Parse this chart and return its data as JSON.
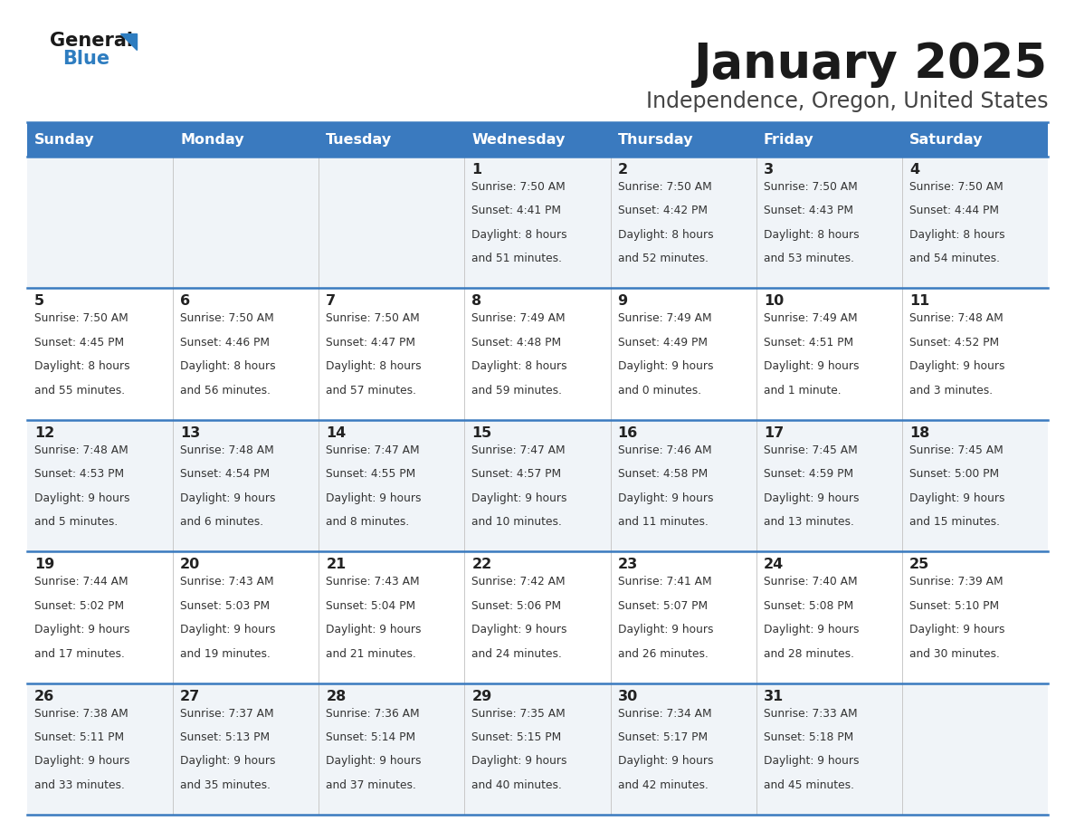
{
  "title": "January 2025",
  "subtitle": "Independence, Oregon, United States",
  "days_of_week": [
    "Sunday",
    "Monday",
    "Tuesday",
    "Wednesday",
    "Thursday",
    "Friday",
    "Saturday"
  ],
  "header_bg": "#3a7abf",
  "header_text": "#ffffff",
  "row_bg_odd": "#f0f4f8",
  "row_bg_even": "#ffffff",
  "cell_text": "#333333",
  "day_num_color": "#222222",
  "border_color": "#3a7abf",
  "logo_color_black": "#1a1a1a",
  "logo_color_blue": "#2e7dc0",
  "calendar_data": [
    [
      {
        "day": null,
        "sunrise": null,
        "sunset": null,
        "daylight": null
      },
      {
        "day": null,
        "sunrise": null,
        "sunset": null,
        "daylight": null
      },
      {
        "day": null,
        "sunrise": null,
        "sunset": null,
        "daylight": null
      },
      {
        "day": 1,
        "sunrise": "7:50 AM",
        "sunset": "4:41 PM",
        "daylight": "8 hours and 51 minutes."
      },
      {
        "day": 2,
        "sunrise": "7:50 AM",
        "sunset": "4:42 PM",
        "daylight": "8 hours and 52 minutes."
      },
      {
        "day": 3,
        "sunrise": "7:50 AM",
        "sunset": "4:43 PM",
        "daylight": "8 hours and 53 minutes."
      },
      {
        "day": 4,
        "sunrise": "7:50 AM",
        "sunset": "4:44 PM",
        "daylight": "8 hours and 54 minutes."
      }
    ],
    [
      {
        "day": 5,
        "sunrise": "7:50 AM",
        "sunset": "4:45 PM",
        "daylight": "8 hours and 55 minutes."
      },
      {
        "day": 6,
        "sunrise": "7:50 AM",
        "sunset": "4:46 PM",
        "daylight": "8 hours and 56 minutes."
      },
      {
        "day": 7,
        "sunrise": "7:50 AM",
        "sunset": "4:47 PM",
        "daylight": "8 hours and 57 minutes."
      },
      {
        "day": 8,
        "sunrise": "7:49 AM",
        "sunset": "4:48 PM",
        "daylight": "8 hours and 59 minutes."
      },
      {
        "day": 9,
        "sunrise": "7:49 AM",
        "sunset": "4:49 PM",
        "daylight": "9 hours and 0 minutes."
      },
      {
        "day": 10,
        "sunrise": "7:49 AM",
        "sunset": "4:51 PM",
        "daylight": "9 hours and 1 minute."
      },
      {
        "day": 11,
        "sunrise": "7:48 AM",
        "sunset": "4:52 PM",
        "daylight": "9 hours and 3 minutes."
      }
    ],
    [
      {
        "day": 12,
        "sunrise": "7:48 AM",
        "sunset": "4:53 PM",
        "daylight": "9 hours and 5 minutes."
      },
      {
        "day": 13,
        "sunrise": "7:48 AM",
        "sunset": "4:54 PM",
        "daylight": "9 hours and 6 minutes."
      },
      {
        "day": 14,
        "sunrise": "7:47 AM",
        "sunset": "4:55 PM",
        "daylight": "9 hours and 8 minutes."
      },
      {
        "day": 15,
        "sunrise": "7:47 AM",
        "sunset": "4:57 PM",
        "daylight": "9 hours and 10 minutes."
      },
      {
        "day": 16,
        "sunrise": "7:46 AM",
        "sunset": "4:58 PM",
        "daylight": "9 hours and 11 minutes."
      },
      {
        "day": 17,
        "sunrise": "7:45 AM",
        "sunset": "4:59 PM",
        "daylight": "9 hours and 13 minutes."
      },
      {
        "day": 18,
        "sunrise": "7:45 AM",
        "sunset": "5:00 PM",
        "daylight": "9 hours and 15 minutes."
      }
    ],
    [
      {
        "day": 19,
        "sunrise": "7:44 AM",
        "sunset": "5:02 PM",
        "daylight": "9 hours and 17 minutes."
      },
      {
        "day": 20,
        "sunrise": "7:43 AM",
        "sunset": "5:03 PM",
        "daylight": "9 hours and 19 minutes."
      },
      {
        "day": 21,
        "sunrise": "7:43 AM",
        "sunset": "5:04 PM",
        "daylight": "9 hours and 21 minutes."
      },
      {
        "day": 22,
        "sunrise": "7:42 AM",
        "sunset": "5:06 PM",
        "daylight": "9 hours and 24 minutes."
      },
      {
        "day": 23,
        "sunrise": "7:41 AM",
        "sunset": "5:07 PM",
        "daylight": "9 hours and 26 minutes."
      },
      {
        "day": 24,
        "sunrise": "7:40 AM",
        "sunset": "5:08 PM",
        "daylight": "9 hours and 28 minutes."
      },
      {
        "day": 25,
        "sunrise": "7:39 AM",
        "sunset": "5:10 PM",
        "daylight": "9 hours and 30 minutes."
      }
    ],
    [
      {
        "day": 26,
        "sunrise": "7:38 AM",
        "sunset": "5:11 PM",
        "daylight": "9 hours and 33 minutes."
      },
      {
        "day": 27,
        "sunrise": "7:37 AM",
        "sunset": "5:13 PM",
        "daylight": "9 hours and 35 minutes."
      },
      {
        "day": 28,
        "sunrise": "7:36 AM",
        "sunset": "5:14 PM",
        "daylight": "9 hours and 37 minutes."
      },
      {
        "day": 29,
        "sunrise": "7:35 AM",
        "sunset": "5:15 PM",
        "daylight": "9 hours and 40 minutes."
      },
      {
        "day": 30,
        "sunrise": "7:34 AM",
        "sunset": "5:17 PM",
        "daylight": "9 hours and 42 minutes."
      },
      {
        "day": 31,
        "sunrise": "7:33 AM",
        "sunset": "5:18 PM",
        "daylight": "9 hours and 45 minutes."
      },
      {
        "day": null,
        "sunrise": null,
        "sunset": null,
        "daylight": null
      }
    ]
  ]
}
